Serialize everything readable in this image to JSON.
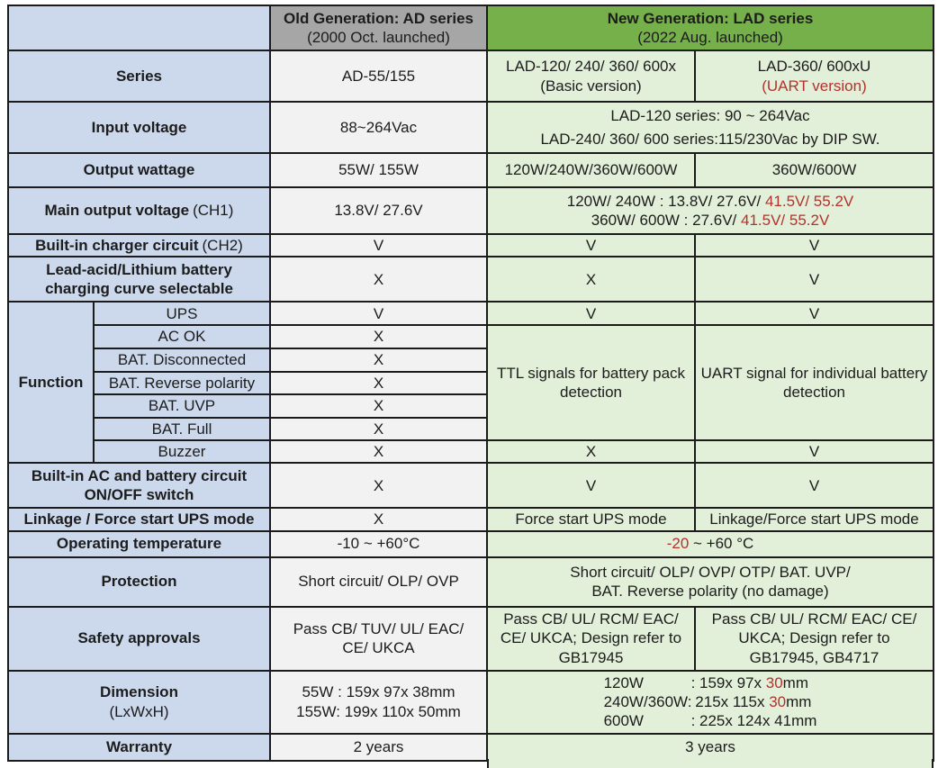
{
  "palette": {
    "label_blue": "#ccd9ed",
    "old_cell_gray": "#f2f2f2",
    "old_header_gray": "#a6a6a6",
    "new_header_green": "#76b04a",
    "new_cell_green": "#e2efd9",
    "accent_red": "#b3322b",
    "border_dark": "#1b1b1b"
  },
  "header": {
    "old_title": "Old Generation: AD series",
    "old_subtitle": "(2000 Oct. launched)",
    "new_title": "New Generation: LAD series",
    "new_subtitle": "(2022 Aug. launched)"
  },
  "series": {
    "label": "Series",
    "old": "AD-55/155",
    "basic_line1": "LAD-120/ 240/ 360/ 600x",
    "basic_line2": "(Basic version)",
    "uart_line1": "LAD-360/ 600xU",
    "uart_line2": "(UART version)"
  },
  "input_voltage": {
    "label": "Input voltage",
    "old": "88~264Vac",
    "new_line1": "LAD-120 series: 90 ~ 264Vac",
    "new_line2": "LAD-240/ 360/ 600 series:115/230Vac by DIP SW."
  },
  "output_wattage": {
    "label": "Output wattage",
    "old": "55W/ 155W",
    "basic": "120W/240W/360W/600W",
    "uart": "360W/600W"
  },
  "main_output": {
    "label": "Main output voltage",
    "label_note": "(CH1)",
    "old": "13.8V/ 27.6V",
    "new_line1_black": "120W/ 240W : 13.8V/ 27.6V/ ",
    "new_line1_red": "41.5V/ 55.2V",
    "new_line2_black": "360W/ 600W : 27.6V/ ",
    "new_line2_red": "41.5V/ 55.2V"
  },
  "charger": {
    "label": "Built-in charger circuit",
    "label_note": "(CH2)",
    "old": "V",
    "basic": "V",
    "uart": "V"
  },
  "battery_curve": {
    "label": "Lead-acid/Lithium battery charging curve selectable",
    "old": "X",
    "basic": "X",
    "uart": "V"
  },
  "function": {
    "label": "Function",
    "items": [
      {
        "name": "UPS",
        "old": "V",
        "basic": "V",
        "uart": "V"
      },
      {
        "name": "AC OK",
        "old": "X"
      },
      {
        "name": "BAT. Disconnected",
        "old": "X"
      },
      {
        "name": "BAT. Reverse polarity",
        "old": "X"
      },
      {
        "name": "BAT. UVP",
        "old": "X"
      },
      {
        "name": "BAT. Full",
        "old": "X"
      },
      {
        "name": "Buzzer",
        "old": "X",
        "basic": "X",
        "uart": "V"
      }
    ],
    "basic_merged": "TTL signals for battery pack detection",
    "uart_merged": "UART signal for individual battery detection"
  },
  "ac_switch": {
    "label": "Built-in AC and battery circuit ON/OFF switch",
    "old": "X",
    "basic": "V",
    "uart": "V"
  },
  "linkage": {
    "label": "Linkage / Force start UPS mode",
    "old": "X",
    "basic": "Force start UPS mode",
    "uart": "Linkage/Force start UPS mode"
  },
  "op_temp": {
    "label": "Operating temperature",
    "old": "-10 ~ +60°C",
    "new_red": "-20",
    "new_black": " ~ +60 °C"
  },
  "protection": {
    "label": "Protection",
    "old": "Short circuit/ OLP/ OVP",
    "new_line1": "Short circuit/ OLP/ OVP/ OTP/ BAT. UVP/",
    "new_line2": "BAT. Reverse polarity (no damage)"
  },
  "safety": {
    "label": "Safety approvals",
    "old_line1": "Pass CB/ TUV/ UL/ EAC/",
    "old_line2": "CE/ UKCA",
    "basic_line1": "Pass CB/ UL/ RCM/ EAC/",
    "basic_line2": "CE/ UKCA; Design refer to",
    "basic_line3": "GB17945",
    "uart_line1": "Pass CB/ UL/ RCM/ EAC/ CE/",
    "uart_line2": "UKCA; Design refer to",
    "uart_line3": "GB17945, GB4717"
  },
  "dimension": {
    "label": "Dimension",
    "label_note": "(LxWxH)",
    "old_line1": "55W : 159x 97x 38mm",
    "old_line2": "155W: 199x 110x 50mm",
    "new_rows": [
      {
        "key": "120W",
        "pre": ": 159x 97x ",
        "red": "30",
        "post": "mm"
      },
      {
        "key": "240W/360W:",
        "pre": " 215x 115x ",
        "red": "30",
        "post": "mm"
      },
      {
        "key": "600W",
        "pre": ": 225x 124x 41mm",
        "red": "",
        "post": ""
      }
    ]
  },
  "warranty": {
    "label": "Warranty",
    "old": "2 years",
    "new": "3 years"
  }
}
